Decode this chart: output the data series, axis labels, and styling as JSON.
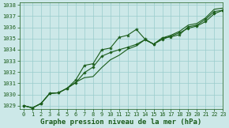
{
  "title": "Graphe pression niveau de la mer (hPa)",
  "bg_color": "#cce8e8",
  "grid_color": "#99cccc",
  "line_color": "#1a5c1a",
  "xlim": [
    -0.5,
    23
  ],
  "ylim": [
    1028.7,
    1038.2
  ],
  "yticks": [
    1029,
    1030,
    1031,
    1032,
    1033,
    1034,
    1035,
    1036,
    1037,
    1038
  ],
  "xticks": [
    0,
    1,
    2,
    3,
    4,
    5,
    6,
    7,
    8,
    9,
    10,
    11,
    12,
    13,
    14,
    15,
    16,
    17,
    18,
    19,
    20,
    21,
    22,
    23
  ],
  "series1": [
    1029.0,
    1028.8,
    1029.2,
    1030.1,
    1030.15,
    1030.55,
    1031.3,
    1032.6,
    1032.75,
    1034.0,
    1034.15,
    1035.1,
    1035.3,
    1035.82,
    1034.95,
    1034.5,
    1035.05,
    1035.15,
    1035.35,
    1036.05,
    1036.2,
    1036.72,
    1037.42,
    1037.52
  ],
  "series2": [
    1029.0,
    1028.8,
    1029.2,
    1030.1,
    1030.15,
    1030.55,
    1031.1,
    1031.5,
    1031.6,
    1032.4,
    1033.1,
    1033.5,
    1034.05,
    1034.35,
    1034.9,
    1034.5,
    1035.05,
    1035.3,
    1035.65,
    1036.2,
    1036.35,
    1036.85,
    1037.62,
    1037.72
  ],
  "series3": [
    1029.0,
    1028.8,
    1029.2,
    1030.1,
    1030.15,
    1030.55,
    1031.05,
    1031.95,
    1032.45,
    1033.42,
    1033.75,
    1034.0,
    1034.22,
    1034.48,
    1034.9,
    1034.5,
    1034.92,
    1035.22,
    1035.52,
    1035.92,
    1036.12,
    1036.52,
    1037.22,
    1037.52
  ],
  "marker_size": 3.0,
  "linewidth": 0.8,
  "title_fontsize": 6.5,
  "tick_fontsize": 5.0
}
